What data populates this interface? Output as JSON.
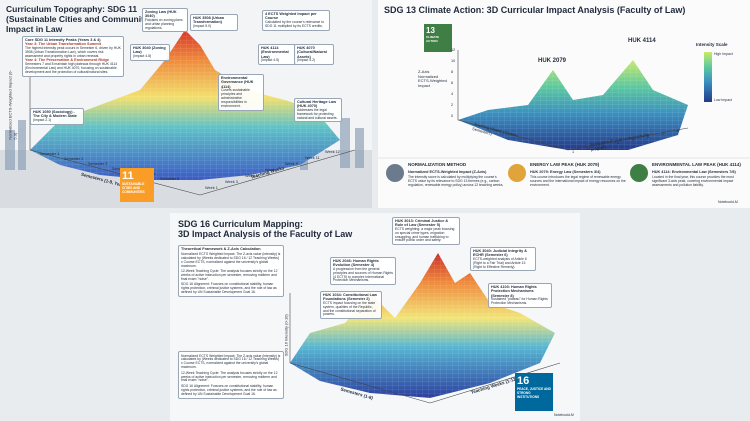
{
  "panel_sdg11": {
    "title": "Curriculum Topography: SDG 11 (Sustainable Cities and Communities) Impact in Law",
    "summary_title": "Core SDG 11 Intensity Peaks (Years 3 & 4)",
    "summary_year3": "Year 3: The Urban Transformation Summit",
    "summary_year3_text": "The highest intensity peak occurs in Semester 6, driven by HUK 3508 (Urban Transformation Law), which covers risk assessment and property rights in urban renewal.",
    "summary_year4": "Year 4: The Preservation & Environment Ridge",
    "summary_year4_text": "Semesters 7 and 8 maintain high plateaus through HUK 4114 (Environmental Law) and HUK 4070, focusing on sustainable development and the protection of cultural/natural sites.",
    "callouts": [
      {
        "title": "HUK 3040 (Zoning Law)",
        "impact": "(Impact 4.8)"
      },
      {
        "title": "Zoning Law (HUK 3040)",
        "impact": "Focuses on zoning plans and urban planning regulations."
      },
      {
        "title": "HUK 3508 (Urban Transformation)",
        "impact": "(Impact 5.0)"
      },
      {
        "title": "4 ECTS Weighted Impact per Course",
        "impact": "Calculated by the course's relevance to SDG 11 multiplied by its ECTS credits."
      },
      {
        "title": "HUK 4114 (Environmental Law)",
        "impact": "(Impact 4.5)"
      },
      {
        "title": "HUK 4070 (Cultural/Natural Assets)",
        "impact": "(Impact 4.2)"
      },
      {
        "title": "Environmental Governance (HUK 4114)",
        "impact": "Covers sustainable principles and administrative responsibilities in environment."
      },
      {
        "title": "Cultural Heritage Law (HUK 4070)",
        "impact": "Addresses the legal framework for protecting natural and cultural assets."
      },
      {
        "title": "HUK 1050 (Sociology) - The City & Modern State",
        "impact": "(Impact 2.1)"
      }
    ],
    "y_axis": "Normalized ECTS-Weighted Impact (0-5.0)",
    "x_axis": "Semesters (1-8, Year Program)",
    "z_axis": "Teaching Weeks",
    "semesters": [
      "Semester 1",
      "Semester 2",
      "Semester 3",
      "Semester 4",
      "Semester 5",
      "Semester 6"
    ],
    "weeks": [
      "Week 1",
      "Week 3",
      "Week 5",
      "Week 7",
      "Week 9",
      "Week 11",
      "Week 12"
    ],
    "badge_number": "11",
    "badge_text": "SUSTAINABLE CITIES AND COMMUNITIES"
  },
  "panel_sdg13": {
    "title": "SDG 13 Climate Action: 3D Curricular Impact Analysis (Faculty of Law)",
    "badge_number": "13",
    "badge_text": "CLIMATE ACTION",
    "peak_a": "HUK 2079",
    "peak_b": "HUK 4114",
    "legend_title": "Intensity Scale",
    "legend_high": "High Impact",
    "legend_low": "Low Impact",
    "z_axis": "Z-Axis Normalized ECTS-Weighted Impact",
    "week_axis": "Teaching Weeks (Sixteen Semesters)",
    "semester_axis": "Semesters (8 year undergraduate program)",
    "z_ticks": [
      "12",
      "10",
      "8",
      "6",
      "4",
      "2",
      "0"
    ],
    "semester_ticks": [
      "1",
      "2",
      "3",
      "4",
      "5",
      "6",
      "7",
      "8"
    ],
    "notes": [
      {
        "title": "NORMALIZATION METHOD",
        "head": "Normalized ECTS-Weighted Impact (Z-Axis)",
        "text": "The intensity score is calculated by multiplying the course's ECTS value by its relevance to SDG 13 themes (e.g., carbon regulation, renewable energy policy) across 12 teaching weeks."
      },
      {
        "title": "ENERGY LAW PEAK (HUK 2079)",
        "head": "HUK 2079: Energy Law (Semesters 3/4)",
        "text": "This course introduces the legal regime of renewable energy sources and the international impact of energy resources on the environment."
      },
      {
        "title": "ENVIRONMENTAL LAW PEAK (HUK 4114)",
        "head": "HUK 4114: Environmental Law (Semesters 7/8)",
        "text": "Located in the final year, this course provides the most significant 3-axis peak, covering environmental impact assessments and pollution liability."
      }
    ],
    "credit": "NotebookLM"
  },
  "panel_sdg16": {
    "title": "SDG 16 Curriculum Mapping:\n3D Impact Analysis of the Faculty of Law",
    "framework_title": "Theoretical Framework & Z-Axis Calculation",
    "framework_items": [
      "Normalized ECTS Weighted Impact: The Z-axis value (intensity) is calculated by (Weeks dedicated to SDG 16 / 12 Teaching Weeks) x Course ECTS, normalized against the university's global maximum.",
      "12-Week Teaching Cycle: The analysis focuses strictly on the 12 weeks of active instruction per semester, removing midterm and final exam \"noise\".",
      "SDG 16 Alignment: Focuses on constitutional stability, human rights protection, criminal justice systems, and the rule of law as defined by UN Sustainable Development Goal 16."
    ],
    "callouts": [
      {
        "title": "HUK 3013: Criminal Justice & Rule of Law (Semester 5)",
        "text": "ECTS weighting: a major peak focusing on special crime types, migration smuggling, and human trafficking to ensure public order and safety."
      },
      {
        "title": "HUK 3040: Judicial Integrity & ECHR (Semester 6)",
        "text": "ECTS-weighted analysis of Article 6 (Right to a Fair Trial) and Article 13 (Right to Effective Remedy)."
      },
      {
        "title": "HUK 4103: Human Rights Protection Mechanisms (Semester 8)",
        "text": "Sustained \"plateau\" for Human Rights Protection Mechanisms."
      },
      {
        "title": "HUK 2046: Human Rights Evolution (Semester 4)",
        "text": "A progression from the general principles and sources of Human Rights (4 ECTS) to complex International Protection Mechanisms."
      },
      {
        "title": "HUK 1034: Constitutional Law Foundations (Semester 2)",
        "text": "ECTS impact focusing on the state system, qualities of the Republic, and the constitutional separation of powers."
      }
    ],
    "z_axis": "SDG 16 Intensity (0-10)",
    "semester_axis": "Semesters (1-8)",
    "week_axis": "Teaching Weeks (1-12)",
    "badge_number": "16",
    "badge_text": "PEACE, JUSTICE AND STRONG INSTITUTIONS",
    "credit": "NotebookLM"
  }
}
